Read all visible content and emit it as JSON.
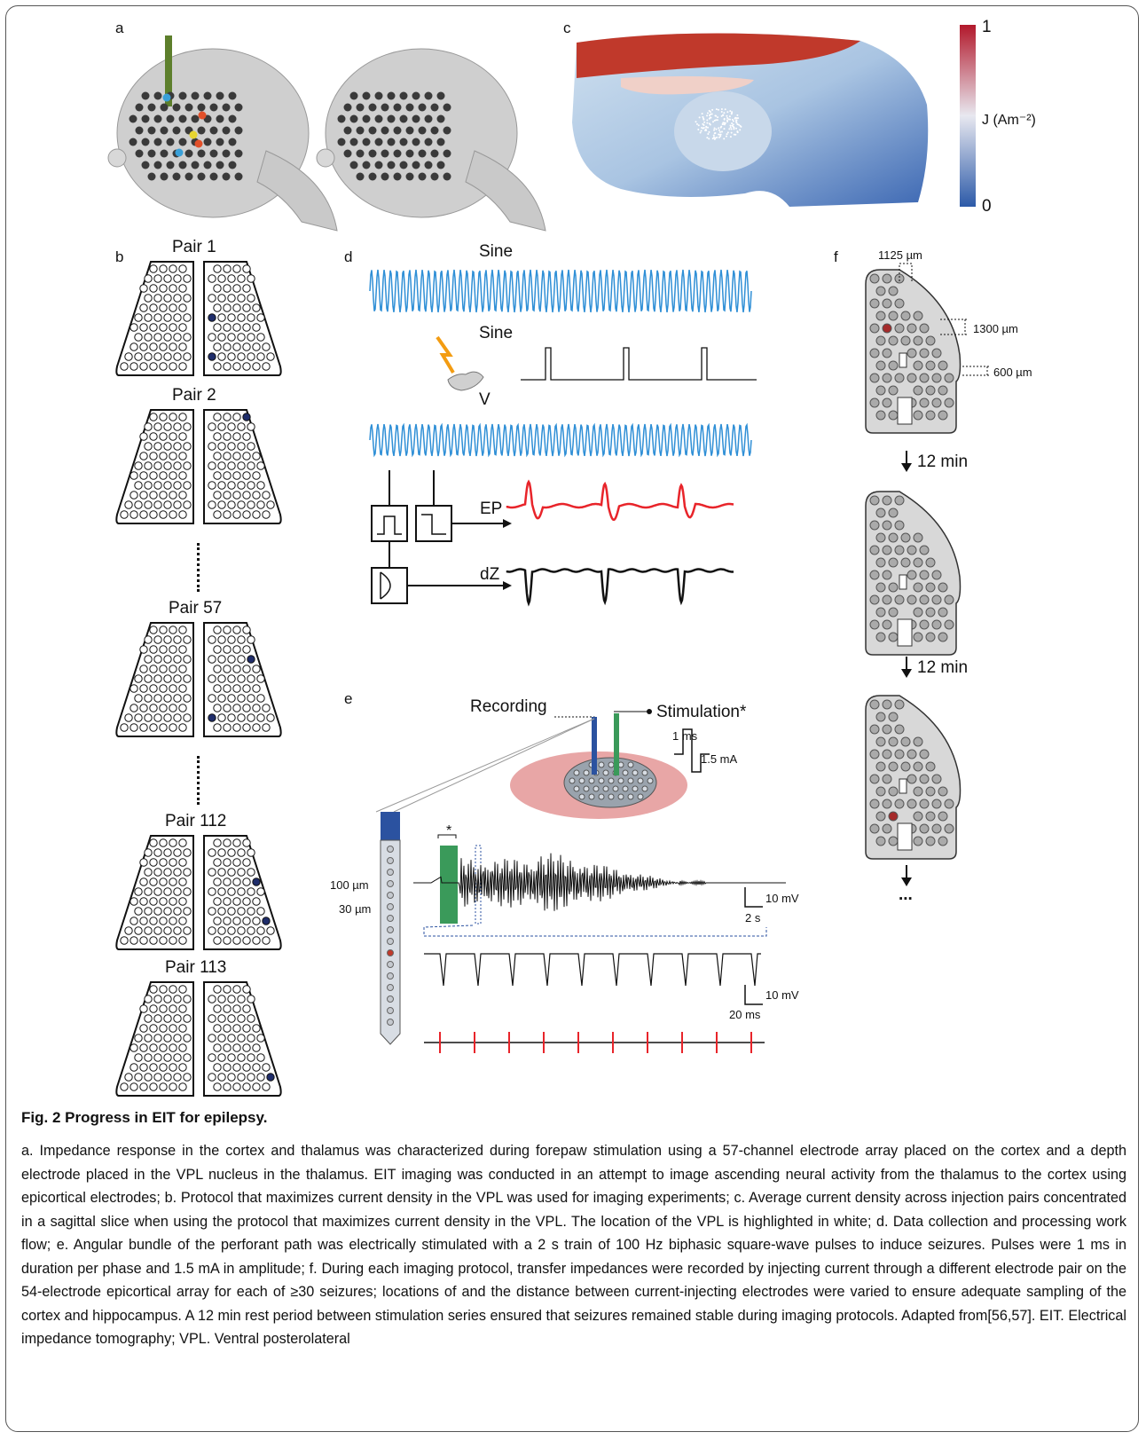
{
  "panel_labels": {
    "a": "a",
    "b": "b",
    "c": "c",
    "d": "d",
    "e": "e",
    "f": "f"
  },
  "panel_c": {
    "scale_max": "1",
    "scale_min": "0",
    "colorbar_label": "J (Am⁻²)"
  },
  "panel_b": {
    "pairs": [
      "Pair 1",
      "Pair 2",
      "Pair 57",
      "Pair 112",
      "Pair 113"
    ]
  },
  "panel_d": {
    "sine_label_1": "Sine",
    "sine_label_2": "Sine",
    "v_label": "V",
    "ep_label": "EP",
    "dz_label": "dZ"
  },
  "panel_e": {
    "recording": "Recording",
    "stimulation": "Stimulation*",
    "pulse_width": "1 ms",
    "pulse_amp": "1.5 mA",
    "spacing_100": "100 µm",
    "spacing_30": "30 µm",
    "star": "*",
    "scale1_v": "10 mV",
    "scale1_t": "2 s",
    "scale2_v": "10 mV",
    "scale2_t": "20 ms"
  },
  "panel_f": {
    "dim_1125": "1125 µm",
    "dim_1300": "1300 µm",
    "dim_600": "600 µm",
    "interval_1": "12 min",
    "interval_2": "12 min",
    "continuation": "..."
  },
  "caption": {
    "title": "Fig. 2 Progress in EIT for epilepsy.",
    "text": "a. Impedance response in the cortex and thalamus was characterized during forepaw stimulation using a 57-channel electrode array placed on the cortex and a depth electrode placed in the VPL nucleus in the thalamus. EIT imaging was conducted in an attempt to image ascending neural activity from the thalamus to the cortex using epicortical electrodes; b. Protocol that maximizes current density in the VPL was used for imaging experiments; c. Average current density across injection pairs concentrated in a sagittal slice when using the protocol that maximizes current density in the VPL. The location of the VPL is highlighted in white; d. Data collection and processing work flow; e. Angular bundle of the perforant path was electrically stimulated with a 2 s train of 100 Hz biphasic square-wave pulses to induce seizures. Pulses were 1 ms in duration per phase and 1.5 mA in amplitude; f. During each imaging protocol, transfer impedances were recorded by injecting current through a different electrode pair on the 54-electrode epicortical array for each of ≥30 seizures; locations of and the distance between current-injecting electrodes were varied to ensure adequate sampling of the cortex and hippocampus. A 12 min rest period between stimulation series ensured that seizures remained stable during imaging protocols. Adapted from[56,57]. EIT. Electrical impedance tomography; VPL. Ventral posterolateral"
  },
  "colors": {
    "sine_blue": "#2f8fd6",
    "ep_red": "#e8242a",
    "dark_dot": "#1f2d6b",
    "red_electrode": "#a52a2a",
    "green_stim": "#3a9a5a",
    "blue_probe": "#2b52a0",
    "brain_pink": "#e8a6a6",
    "cb_red": "#b2182b",
    "cb_blue": "#2c5aa8"
  }
}
